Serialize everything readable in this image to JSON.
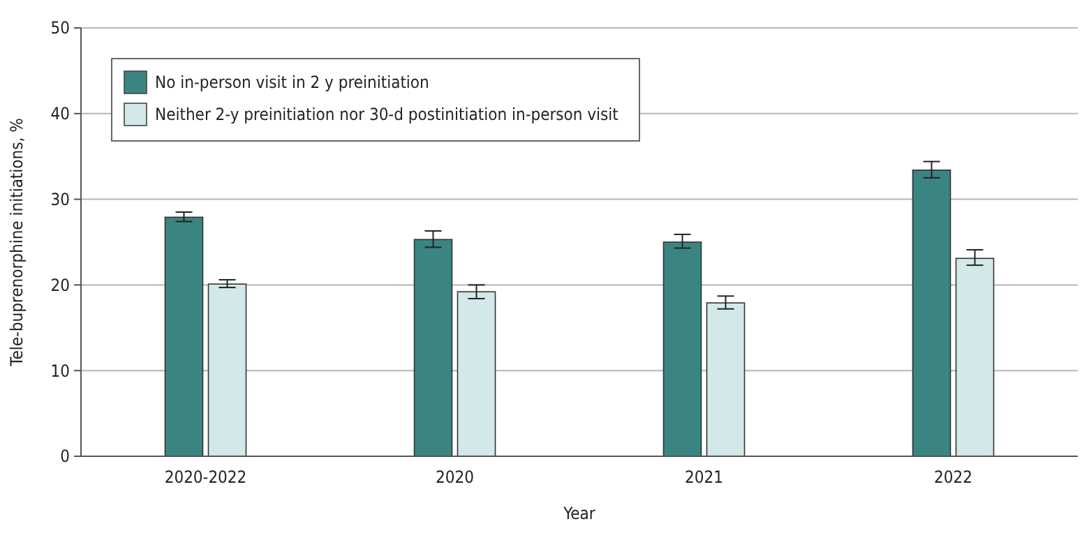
{
  "chart_data": {
    "type": "bar",
    "xlabel": "Year",
    "ylabel": "Tele-buprenorphine initiations, %",
    "categories": [
      "2020-2022",
      "2020",
      "2021",
      "2022"
    ],
    "series": [
      {
        "name": "No in-person visit in 2 y preinitiation",
        "color": "#3a8582",
        "values": [
          27.9,
          25.3,
          25.0,
          33.4
        ],
        "errors": [
          [
            27.4,
            28.5
          ],
          [
            24.4,
            26.3
          ],
          [
            24.3,
            25.9
          ],
          [
            32.5,
            34.4
          ]
        ]
      },
      {
        "name": "Neither 2-y preinitiation nor 30-d postinitiation in-person visit",
        "color": "#d3e8e8",
        "values": [
          20.1,
          19.2,
          17.9,
          23.1
        ],
        "errors": [
          [
            19.7,
            20.6
          ],
          [
            18.4,
            20.0
          ],
          [
            17.2,
            18.7
          ],
          [
            22.3,
            24.1
          ]
        ]
      }
    ],
    "ylim": [
      0,
      50
    ],
    "yticks": [
      0,
      10,
      20,
      30,
      40,
      50
    ],
    "grid": "y",
    "legend": "top left"
  }
}
